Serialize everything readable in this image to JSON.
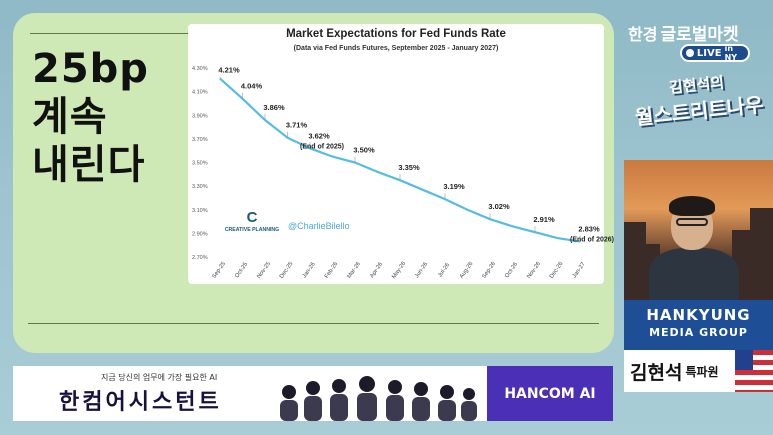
{
  "headline": {
    "line1": "25bp",
    "line2": "계속",
    "line3": "내린다"
  },
  "brand": {
    "prefix": "한경",
    "name": "글로벌마켓",
    "live": "LIVE",
    "live_suffix": "in NY"
  },
  "show": {
    "line1": "김현석의",
    "line2": "월스트리트나우"
  },
  "media": {
    "line1": "HANKYUNG",
    "line2": "MEDIA GROUP"
  },
  "anchor": {
    "name": "김현석",
    "title": "특파원"
  },
  "banner": {
    "sub": "지금 당신의 업무에 가장 필요한 AI",
    "main": "한컴어시스턴트",
    "cta": "HANCOM AI"
  },
  "chart_logo": {
    "name": "CREATIVE PLANNING",
    "handle": "@CharlieBilello"
  },
  "colors": {
    "line": "#55bde0",
    "panel": "#cfe9b6",
    "brand_blue": "#1d4e96",
    "cta": "#4b2fb6"
  },
  "chart_data": {
    "type": "line",
    "title": "Market Expectations for Fed Funds Rate",
    "subtitle": "(Data via Fed Funds Futures, September 2025 - January 2027)",
    "xlabel": "",
    "ylabel": "",
    "categories": [
      "Sep-25",
      "Oct-25",
      "Nov-25",
      "Dec-25",
      "Jan-26",
      "Feb-26",
      "Mar-26",
      "Apr-26",
      "May-26",
      "Jun-26",
      "Jul-26",
      "Aug-26",
      "Sep-26",
      "Oct-26",
      "Nov-26",
      "Dec-26",
      "Jan-27"
    ],
    "series": [
      {
        "values": [
          4.21,
          4.04,
          3.86,
          3.71,
          3.62,
          3.55,
          3.5,
          3.42,
          3.35,
          3.27,
          3.19,
          3.1,
          3.02,
          2.96,
          2.91,
          2.86,
          2.83
        ]
      }
    ],
    "y_ticks": [
      "2.70%",
      "2.90%",
      "3.10%",
      "3.30%",
      "3.50%",
      "3.70%",
      "3.90%",
      "4.10%",
      "4.30%"
    ],
    "ylim": [
      2.7,
      4.3
    ],
    "labels": [
      {
        "index": 0,
        "text": "4.21%"
      },
      {
        "index": 1,
        "text": "4.04%"
      },
      {
        "index": 2,
        "text": "3.86%"
      },
      {
        "index": 3,
        "text": "3.71%"
      },
      {
        "index": 4,
        "text": "3.62%",
        "note": "(End of 2025)"
      },
      {
        "index": 6,
        "text": "3.50%"
      },
      {
        "index": 8,
        "text": "3.35%"
      },
      {
        "index": 10,
        "text": "3.19%"
      },
      {
        "index": 12,
        "text": "3.02%"
      },
      {
        "index": 14,
        "text": "2.91%"
      },
      {
        "index": 16,
        "text": "2.83%",
        "note": "(End of 2026)"
      }
    ],
    "grid": false
  }
}
